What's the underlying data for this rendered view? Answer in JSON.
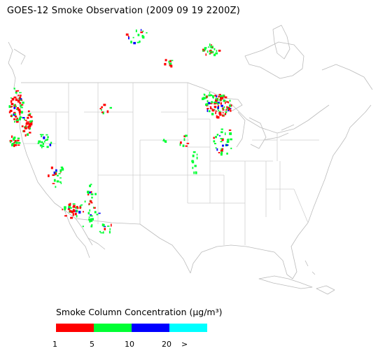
{
  "title": "GOES-12 Smoke Observation (2009 09 19  2200Z)",
  "legend": {
    "title": "Smoke Column Concentration (μg/m³)",
    "bins": [
      {
        "label": "1",
        "color": "#ff0000"
      },
      {
        "label": "5",
        "color": "#00ff33"
      },
      {
        "label": "10",
        "color": "#0000ff"
      },
      {
        "label": "20",
        "color": "#00ffff"
      }
    ],
    "overflow_label": ">"
  },
  "colors": {
    "background": "#ffffff",
    "map_lines": "#bbbbbb",
    "low": "#ff0000",
    "mid": "#00ff33",
    "high": "#0000ff",
    "very_high": "#00ffff"
  }
}
